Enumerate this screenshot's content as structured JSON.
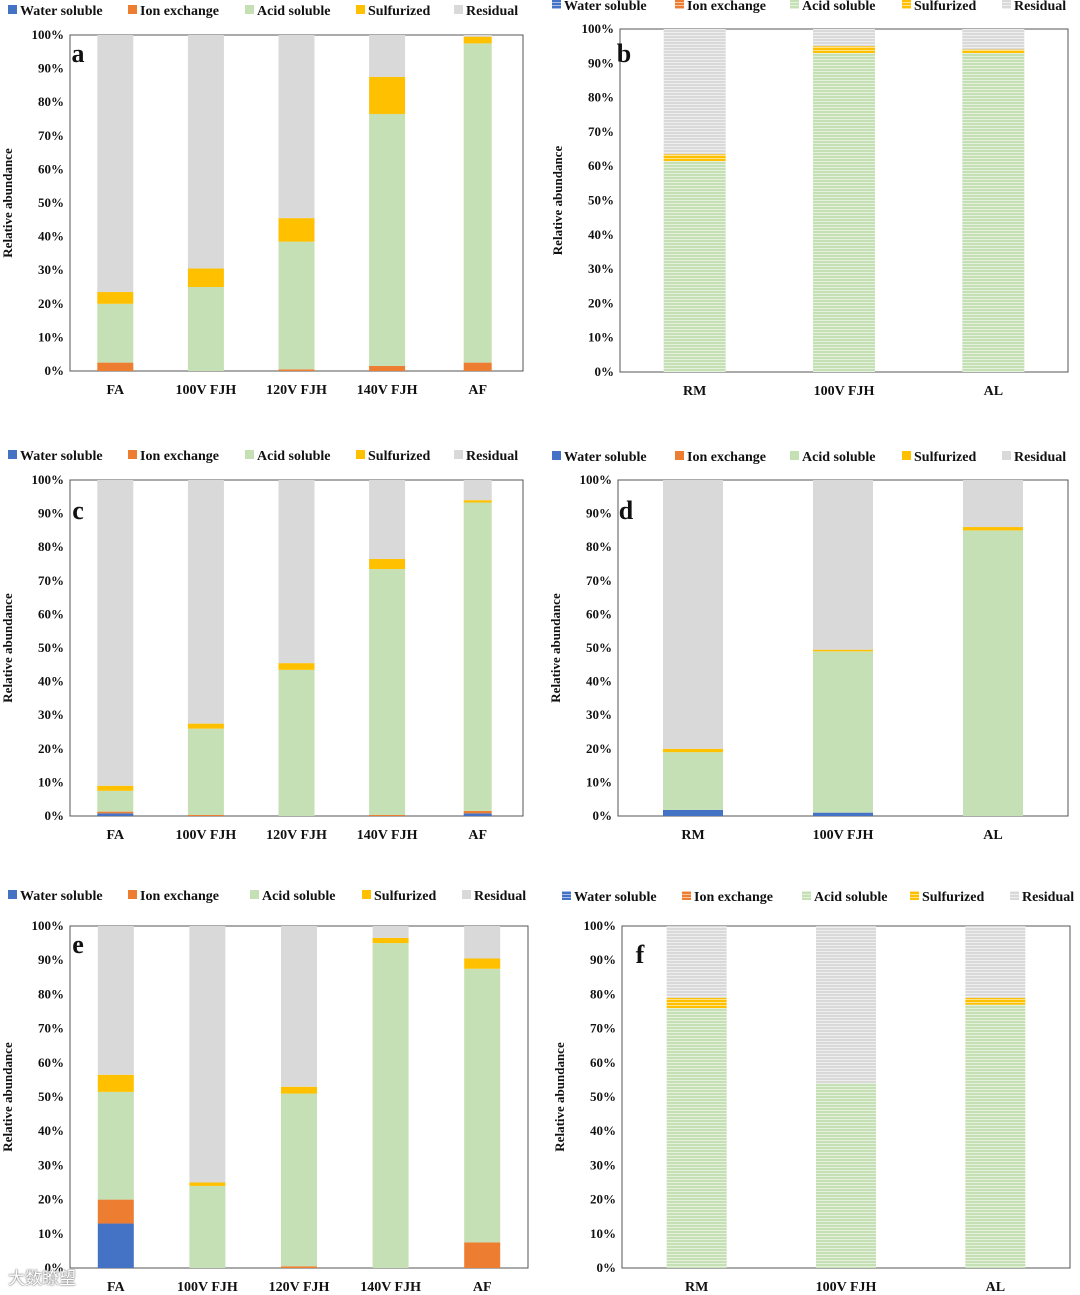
{
  "colors": {
    "Water soluble": "#4472C4",
    "Ion exchange": "#ED7D31",
    "Acid soluble": "#C5E0B4",
    "Sulfurized": "#FFC000",
    "Residual": "#D9D9D9"
  },
  "watermark": "大数瞭望",
  "chart_data": [
    {
      "type": "bar",
      "stacked": true,
      "panel_label": "a",
      "categories": [
        "FA",
        "100V FJH",
        "120V FJH",
        "140V FJH",
        "AF"
      ],
      "series": [
        {
          "name": "Water soluble",
          "values": [
            0,
            0,
            0,
            0,
            0
          ]
        },
        {
          "name": "Ion exchange",
          "values": [
            2.5,
            0,
            0.5,
            1.5,
            2.5
          ]
        },
        {
          "name": "Acid soluble",
          "values": [
            17.5,
            25,
            38,
            75,
            95
          ]
        },
        {
          "name": "Sulfurized",
          "values": [
            3.5,
            5.5,
            7,
            11,
            2
          ]
        },
        {
          "name": "Residual",
          "values": [
            76.5,
            69.5,
            54.5,
            12.5,
            0.5
          ]
        }
      ],
      "ylabel": "Relative abundance",
      "ylim": [
        0,
        100
      ],
      "yticks": [
        "0%",
        "10%",
        "20%",
        "30%",
        "40%",
        "50%",
        "60%",
        "70%",
        "80%",
        "90%",
        "100%"
      ],
      "legend": "top"
    },
    {
      "type": "bar",
      "stacked": true,
      "panel_label": "b",
      "categories": [
        "RM",
        "100V FJH",
        "AL"
      ],
      "series": [
        {
          "name": "Water soluble",
          "values": [
            0,
            0,
            0
          ]
        },
        {
          "name": "Ion exchange",
          "values": [
            0,
            0,
            0
          ]
        },
        {
          "name": "Acid soluble",
          "values": [
            61.5,
            93,
            93
          ]
        },
        {
          "name": "Sulfurized",
          "values": [
            2,
            2,
            1
          ]
        },
        {
          "name": "Residual",
          "values": [
            36.5,
            5,
            6
          ]
        }
      ],
      "ylabel": "Relative abundance",
      "ylim": [
        0,
        100
      ],
      "yticks": [
        "0%",
        "10%",
        "20%",
        "30%",
        "40%",
        "50%",
        "60%",
        "70%",
        "80%",
        "90%",
        "100%"
      ],
      "legend": "top"
    },
    {
      "type": "bar",
      "stacked": true,
      "panel_label": "c",
      "categories": [
        "FA",
        "100V FJH",
        "120V FJH",
        "140V FJH",
        "AF"
      ],
      "series": [
        {
          "name": "Water soluble",
          "values": [
            0.8,
            0,
            0,
            0,
            0.8
          ]
        },
        {
          "name": "Ion exchange",
          "values": [
            0.5,
            0.3,
            0,
            0.3,
            0.7
          ]
        },
        {
          "name": "Acid soluble",
          "values": [
            6.2,
            25.7,
            43.5,
            73.2,
            91.8
          ]
        },
        {
          "name": "Sulfurized",
          "values": [
            1.5,
            1.5,
            2,
            3,
            0.7
          ]
        },
        {
          "name": "Residual",
          "values": [
            91,
            72.5,
            54.5,
            23.5,
            6
          ]
        }
      ],
      "ylabel": "Relative abundance",
      "ylim": [
        0,
        100
      ],
      "yticks": [
        "0%",
        "10%",
        "20%",
        "30%",
        "40%",
        "50%",
        "60%",
        "70%",
        "80%",
        "90%",
        "100%"
      ],
      "legend": "top"
    },
    {
      "type": "bar",
      "stacked": true,
      "panel_label": "d",
      "categories": [
        "RM",
        "100V FJH",
        "AL"
      ],
      "series": [
        {
          "name": "Water soluble",
          "values": [
            1.8,
            1,
            0
          ]
        },
        {
          "name": "Ion exchange",
          "values": [
            0,
            0,
            0
          ]
        },
        {
          "name": "Acid soluble",
          "values": [
            17.2,
            48,
            85
          ]
        },
        {
          "name": "Sulfurized",
          "values": [
            1,
            0.5,
            1
          ]
        },
        {
          "name": "Residual",
          "values": [
            80,
            50.5,
            14
          ]
        }
      ],
      "ylabel": "Relative abundance",
      "ylim": [
        0,
        100
      ],
      "yticks": [
        "0%",
        "10%",
        "20%",
        "30%",
        "40%",
        "50%",
        "60%",
        "70%",
        "80%",
        "90%",
        "100%"
      ],
      "legend": "top"
    },
    {
      "type": "bar",
      "stacked": true,
      "panel_label": "e",
      "categories": [
        "FA",
        "100V FJH",
        "120V FJH",
        "140V FJH",
        "AF"
      ],
      "series": [
        {
          "name": "Water soluble",
          "values": [
            13,
            0,
            0,
            0,
            0
          ]
        },
        {
          "name": "Ion exchange",
          "values": [
            7,
            0,
            0.5,
            0,
            7.5
          ]
        },
        {
          "name": "Acid soluble",
          "values": [
            31.5,
            24,
            50.5,
            95,
            80
          ]
        },
        {
          "name": "Sulfurized",
          "values": [
            5,
            1,
            2,
            1.5,
            3
          ]
        },
        {
          "name": "Residual",
          "values": [
            43.5,
            75,
            47,
            3.5,
            9.5
          ]
        }
      ],
      "ylabel": "Relative abundance",
      "ylim": [
        0,
        100
      ],
      "yticks": [
        "0%",
        "10%",
        "20%",
        "30%",
        "40%",
        "50%",
        "60%",
        "70%",
        "80%",
        "90%",
        "100%"
      ],
      "legend": "top"
    },
    {
      "type": "bar",
      "stacked": true,
      "panel_label": "f",
      "categories": [
        "RM",
        "100V FJH",
        "AL"
      ],
      "series": [
        {
          "name": "Water soluble",
          "values": [
            0,
            0,
            0
          ]
        },
        {
          "name": "Ion exchange",
          "values": [
            0,
            0,
            0
          ]
        },
        {
          "name": "Acid soluble",
          "values": [
            76,
            54,
            77
          ]
        },
        {
          "name": "Sulfurized",
          "values": [
            3,
            0,
            2
          ]
        },
        {
          "name": "Residual",
          "values": [
            21,
            46,
            21
          ]
        }
      ],
      "ylabel": "Relative abundance",
      "ylim": [
        0,
        100
      ],
      "yticks": [
        "0%",
        "10%",
        "20%",
        "30%",
        "40%",
        "50%",
        "60%",
        "70%",
        "80%",
        "90%",
        "100%"
      ],
      "legend": "top"
    }
  ]
}
